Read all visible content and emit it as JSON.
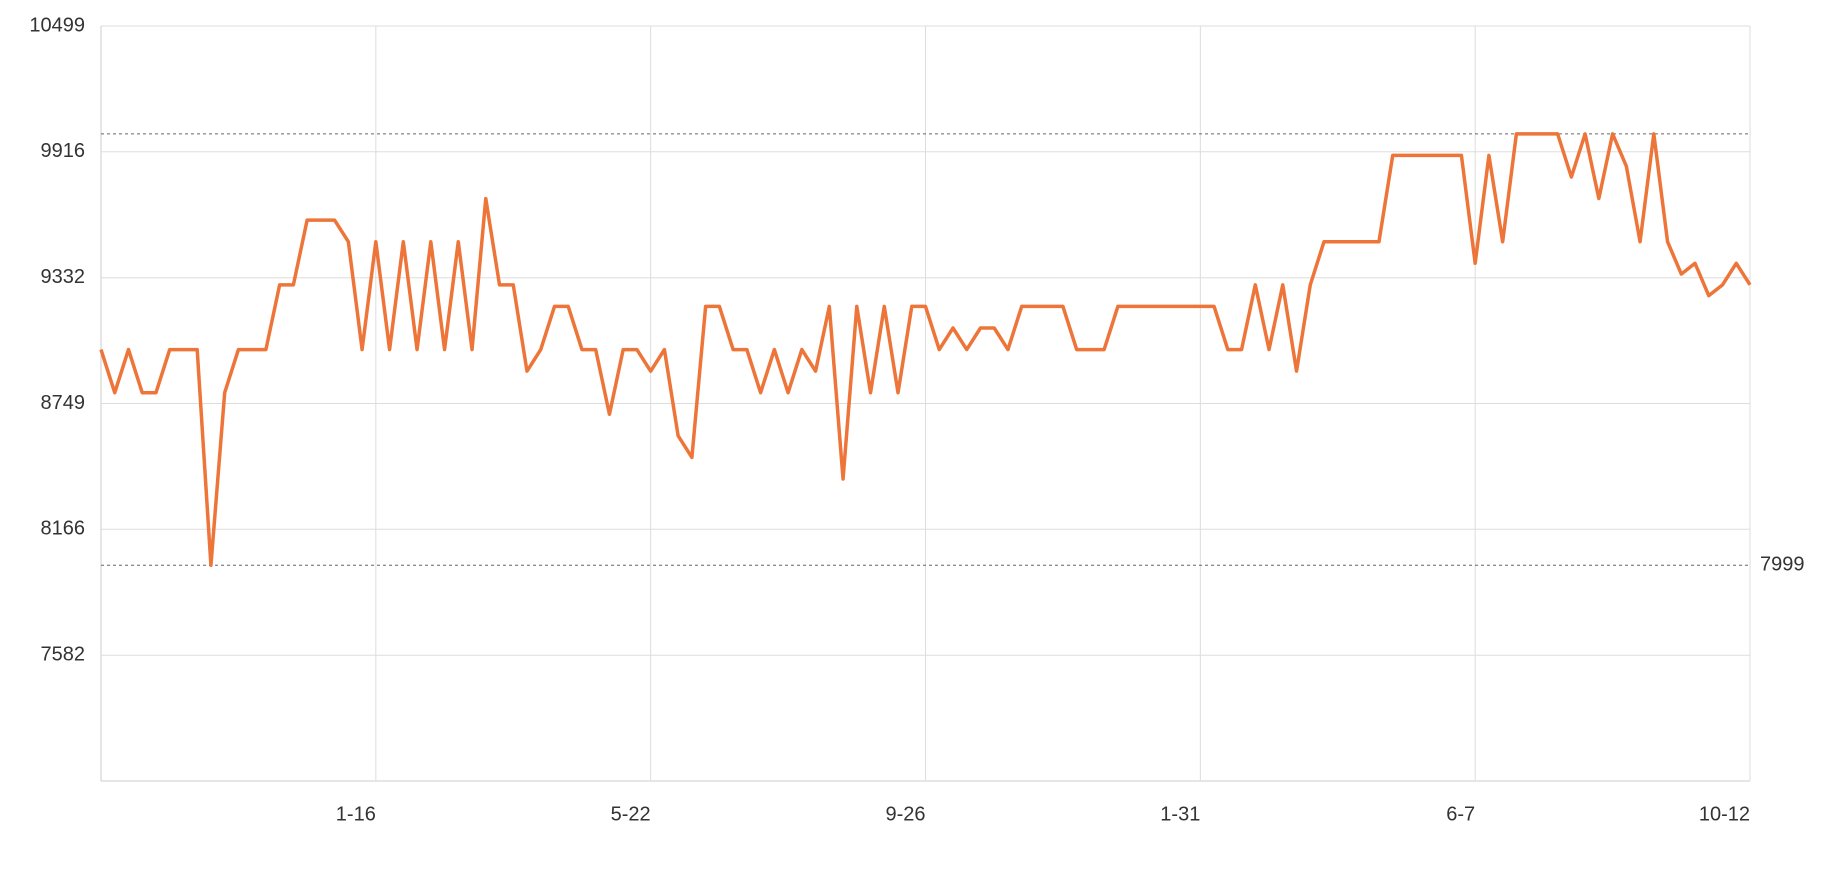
{
  "chart_data": {
    "type": "line",
    "categories": [
      null,
      null,
      null,
      null,
      null,
      null,
      null,
      null,
      null,
      null,
      null,
      null,
      null,
      null,
      null,
      null,
      null,
      null,
      null,
      null,
      "1-16",
      null,
      null,
      null,
      null,
      null,
      null,
      null,
      null,
      null,
      null,
      null,
      null,
      null,
      null,
      null,
      null,
      null,
      null,
      null,
      "5-22",
      null,
      null,
      null,
      null,
      null,
      null,
      null,
      null,
      null,
      null,
      null,
      null,
      null,
      null,
      null,
      null,
      null,
      null,
      null,
      "9-26",
      null,
      null,
      null,
      null,
      null,
      null,
      null,
      null,
      null,
      null,
      null,
      null,
      null,
      null,
      null,
      null,
      null,
      null,
      null,
      "1-31",
      null,
      null,
      null,
      null,
      null,
      null,
      null,
      null,
      null,
      null,
      null,
      null,
      null,
      null,
      null,
      null,
      null,
      null,
      null,
      "6-7",
      null,
      null,
      null,
      null,
      null,
      null,
      null,
      null,
      null,
      null,
      null,
      null,
      null,
      null,
      null,
      null,
      null,
      null,
      null,
      "10-12"
    ],
    "values": [
      8999,
      8799,
      8999,
      8799,
      8799,
      8999,
      8999,
      8999,
      7999,
      8799,
      8999,
      8999,
      8999,
      9299,
      9299,
      9599,
      9599,
      9599,
      9499,
      8999,
      9499,
      8999,
      9499,
      8999,
      9499,
      8999,
      9499,
      8999,
      9699,
      9299,
      9299,
      8899,
      8999,
      9199,
      9199,
      8999,
      8999,
      8699,
      8999,
      8999,
      8899,
      8999,
      8599,
      8499,
      9199,
      9199,
      8999,
      8999,
      8799,
      8999,
      8799,
      8999,
      8899,
      9199,
      8399,
      9199,
      8799,
      9199,
      8799,
      9199,
      9199,
      8999,
      9099,
      8999,
      9099,
      9099,
      8999,
      9199,
      9199,
      9199,
      9199,
      8999,
      8999,
      8999,
      9199,
      9199,
      9199,
      9199,
      9199,
      9199,
      9199,
      9199,
      8999,
      8999,
      9299,
      8999,
      9299,
      8899,
      9299,
      9499,
      9499,
      9499,
      9499,
      9499,
      9899,
      9899,
      9899,
      9899,
      9899,
      9899,
      9399,
      9899,
      9499,
      9999,
      9999,
      9999,
      9999,
      9799,
      9999,
      9699,
      9999,
      9849,
      9499,
      9999,
      9499,
      9349,
      9399,
      9249,
      9299,
      9399,
      9299
    ],
    "color": "#ee7539",
    "ylim": [
      6999,
      10499
    ],
    "yticks": [
      7582,
      8166,
      8749,
      9332,
      9916,
      10499
    ],
    "grid": true,
    "max_line": 9999,
    "min_line": 7999
  }
}
